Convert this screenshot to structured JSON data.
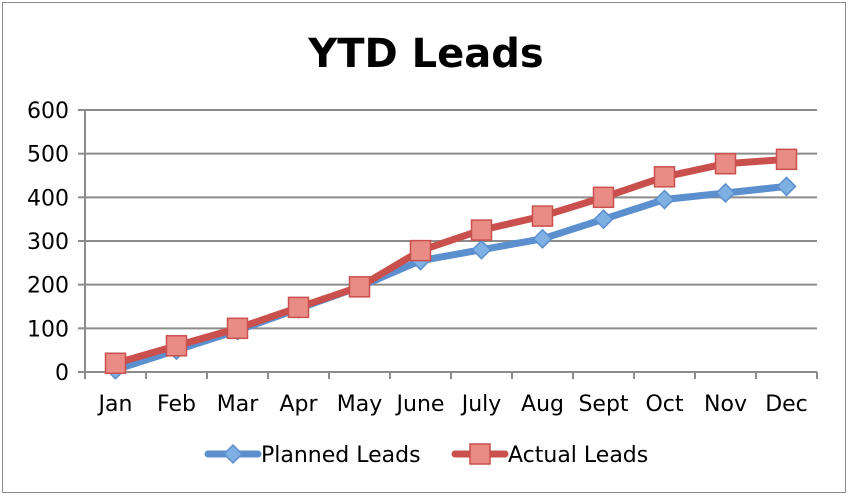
{
  "colors": {
    "planned": "#5b8fce",
    "planned_marker": "#7eb0e4",
    "actual": "#c9504c",
    "actual_marker": "#e98c86",
    "grid": "#8c8c8c",
    "axis": "#8c8c8c"
  },
  "chart_data": {
    "type": "line",
    "title": "YTD Leads",
    "xlabel": "",
    "ylabel": "",
    "categories": [
      "Jan",
      "Feb",
      "Mar",
      "Apr",
      "May",
      "June",
      "July",
      "Aug",
      "Sept",
      "Oct",
      "Nov",
      "Dec"
    ],
    "ylim": [
      0,
      600
    ],
    "yticks": [
      "0",
      "100",
      "200",
      "300",
      "400",
      "500",
      "600"
    ],
    "grid": true,
    "legend_position": "bottom",
    "series": [
      {
        "name": "Planned Leads",
        "marker": "diamond",
        "color_key": "planned",
        "values": [
          5,
          50,
          95,
          145,
          195,
          255,
          280,
          305,
          350,
          395,
          410,
          425
        ]
      },
      {
        "name": "Actual Leads",
        "marker": "square",
        "color_key": "actual",
        "values": [
          20,
          60,
          100,
          148,
          195,
          278,
          325,
          357,
          400,
          447,
          477,
          487
        ]
      }
    ]
  }
}
